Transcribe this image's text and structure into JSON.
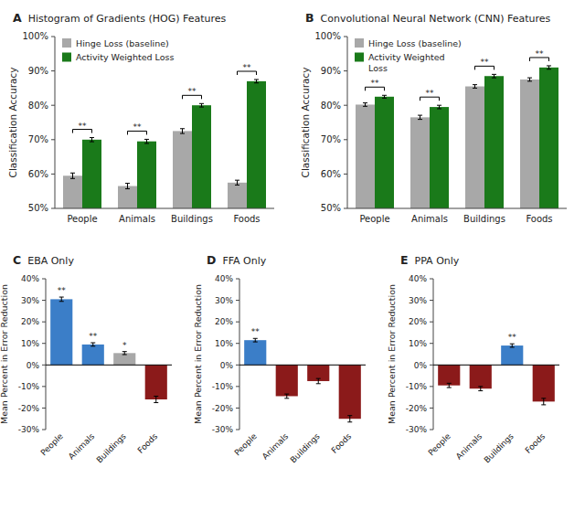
{
  "chart_data": [
    {
      "type": "bar",
      "title": "A  Histogram of Gradients (HOG) Features",
      "categories": [
        "People",
        "Animals",
        "Buildings",
        "Foods"
      ],
      "series": [
        {
          "name": "Hinge Loss (baseline)",
          "color": "#A8A8A8",
          "values": [
            59.5,
            56.5,
            72.5,
            57.5
          ],
          "errors": [
            0.8,
            0.8,
            0.7,
            0.7
          ]
        },
        {
          "name": "Activity Weighted Loss",
          "color": "#1A7A1A",
          "values": [
            70.0,
            69.5,
            80.0,
            87.0
          ],
          "errors": [
            0.6,
            0.6,
            0.5,
            0.5
          ]
        }
      ],
      "annotations": [
        "**",
        "**",
        "**",
        "**"
      ],
      "y_label": "Classification Accuracy",
      "ylim": [
        50,
        100
      ],
      "yticks": [
        {
          "value": 50,
          "label": "50%"
        },
        {
          "value": 60,
          "label": "60%"
        },
        {
          "value": 70,
          "label": "70%"
        },
        {
          "value": 80,
          "label": "80%"
        },
        {
          "value": 90,
          "label": "90%"
        },
        {
          "value": 100,
          "label": "100%"
        }
      ],
      "grid": false,
      "legend": "upper left"
    },
    {
      "type": "bar",
      "title": "B  Convolutional Neural Network (CNN) Features",
      "categories": [
        "People",
        "Animals",
        "Buildings",
        "Foods"
      ],
      "series": [
        {
          "name": "Hinge Loss (baseline)",
          "color": "#A8A8A8",
          "values": [
            80.2,
            76.5,
            85.5,
            87.5
          ],
          "errors": [
            0.5,
            0.6,
            0.5,
            0.5
          ]
        },
        {
          "name": "Activity Weighted\nLoss",
          "color": "#1A7A1A",
          "values": [
            82.5,
            79.5,
            88.5,
            91.0
          ],
          "errors": [
            0.4,
            0.5,
            0.5,
            0.5
          ]
        }
      ],
      "annotations": [
        "**",
        "**",
        "**",
        "**"
      ],
      "y_label": "Classification Accuracy",
      "ylim": [
        50,
        100
      ],
      "yticks": [
        {
          "value": 50,
          "label": "50%"
        },
        {
          "value": 60,
          "label": "60%"
        },
        {
          "value": 70,
          "label": "70%"
        },
        {
          "value": 80,
          "label": "80%"
        },
        {
          "value": 90,
          "label": "90%"
        },
        {
          "value": 100,
          "label": "100%"
        }
      ],
      "grid": false,
      "legend": "upper left"
    },
    {
      "type": "bar",
      "title": "C  EBA Only",
      "categories": [
        "People",
        "Animals",
        "Buildings",
        "Foods"
      ],
      "values": [
        30.5,
        9.5,
        5.5,
        -16.0
      ],
      "errors": [
        1.0,
        0.8,
        0.7,
        1.5
      ],
      "colors": [
        "#3B7EC8",
        "#3B7EC8",
        "#A8A8A8",
        "#8B1A1A"
      ],
      "annotations": [
        "**",
        "**",
        "*",
        null
      ],
      "y_label": "Mean Percent in Error Reduction",
      "ylim": [
        -30,
        40
      ],
      "yticks": [
        {
          "value": -30,
          "label": "-30%"
        },
        {
          "value": -20,
          "label": "-20%"
        },
        {
          "value": -10,
          "label": "-10%"
        },
        {
          "value": 0,
          "label": "0%"
        },
        {
          "value": 10,
          "label": "10%"
        },
        {
          "value": 20,
          "label": "20%"
        },
        {
          "value": 30,
          "label": "30%"
        },
        {
          "value": 40,
          "label": "40%"
        }
      ],
      "grid": false
    },
    {
      "type": "bar",
      "title": "D  FFA Only",
      "categories": [
        "People",
        "Animals",
        "Buildings",
        "Foods"
      ],
      "values": [
        11.5,
        -14.5,
        -7.5,
        -25.0
      ],
      "errors": [
        0.8,
        1.0,
        1.2,
        1.5
      ],
      "colors": [
        "#3B7EC8",
        "#8B1A1A",
        "#8B1A1A",
        "#8B1A1A"
      ],
      "annotations": [
        "**",
        null,
        null,
        null
      ],
      "y_label": "Mean Percent in Error Reduction",
      "ylim": [
        -30,
        40
      ],
      "yticks": [
        {
          "value": -30,
          "label": "-30%"
        },
        {
          "value": -20,
          "label": "-20%"
        },
        {
          "value": -10,
          "label": "-10%"
        },
        {
          "value": 0,
          "label": "0%"
        },
        {
          "value": 10,
          "label": "10%"
        },
        {
          "value": 20,
          "label": "20%"
        },
        {
          "value": 30,
          "label": "30%"
        },
        {
          "value": 40,
          "label": "40%"
        }
      ],
      "grid": false
    },
    {
      "type": "bar",
      "title": "E  PPA Only",
      "categories": [
        "People",
        "Animals",
        "Buildings",
        "Foods"
      ],
      "values": [
        -9.5,
        -11.0,
        9.0,
        -17.0
      ],
      "errors": [
        1.0,
        1.0,
        0.8,
        1.5
      ],
      "colors": [
        "#8B1A1A",
        "#8B1A1A",
        "#3B7EC8",
        "#8B1A1A"
      ],
      "annotations": [
        null,
        null,
        "**",
        null
      ],
      "y_label": "Mean Percent in Error Reduction",
      "ylim": [
        -30,
        40
      ],
      "yticks": [
        {
          "value": -30,
          "label": "-30%"
        },
        {
          "value": -20,
          "label": "-20%"
        },
        {
          "value": -10,
          "label": "-10%"
        },
        {
          "value": 0,
          "label": "0%"
        },
        {
          "value": 10,
          "label": "10%"
        },
        {
          "value": 20,
          "label": "20%"
        },
        {
          "value": 30,
          "label": "30%"
        },
        {
          "value": 40,
          "label": "40%"
        }
      ],
      "grid": false
    }
  ]
}
